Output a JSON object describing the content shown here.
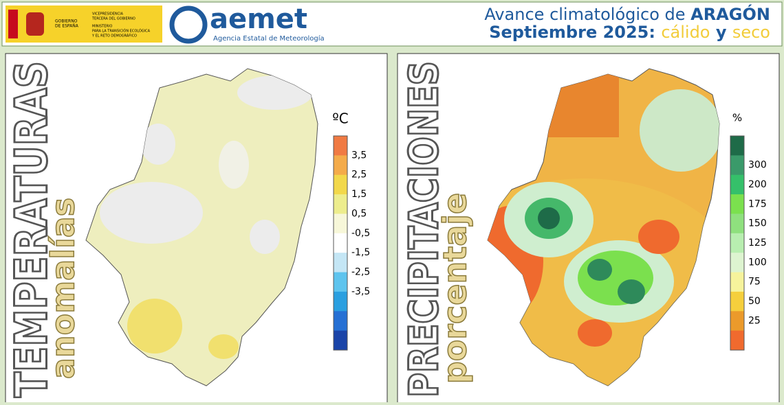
{
  "header": {
    "gov": {
      "line1": "GOBIERNO",
      "line2": "DE ESPAÑA",
      "vice1": "VICEPRESIDENCIA",
      "vice2": "TERCERA DEL GOBIERNO",
      "min1": "MINISTERIO",
      "min2": "PARA LA TRANSICIÓN ECOLÓGICA",
      "min3": "Y EL RETO DEMOGRÁFICO"
    },
    "aemet": {
      "logo": "aemet",
      "subtitle": "Agencia Estatal de Meteorología"
    },
    "title": {
      "line1": [
        "Avance climatológico de ",
        "ARAGÓN"
      ],
      "line2": [
        "Septiembre 2025: ",
        "cálido",
        " y ",
        "seco"
      ]
    }
  },
  "panels": [
    {
      "title": "TEMPERATURAS",
      "subtitle": "anomalías",
      "unit": "ºC",
      "legend": {
        "labels": [
          "3,5",
          "2,5",
          "1,5",
          "0,5",
          "-0,5",
          "-1,5",
          "-2,5",
          "-3,5"
        ],
        "colors": [
          "#f07a43",
          "#f4ab4a",
          "#f2d84b",
          "#eded8d",
          "#f7f7d9",
          "#ffffff",
          "#c4e6f5",
          "#5ec4ee",
          "#2a9fe0",
          "#2670d4",
          "#1a44a8"
        ]
      }
    },
    {
      "title": "PRECIPITACIONES",
      "subtitle": "porcentaje",
      "unit": "%",
      "legend": {
        "labels": [
          "300",
          "200",
          "175",
          "150",
          "125",
          "100",
          "75",
          "50",
          "25"
        ],
        "colors": [
          "#1e6b48",
          "#3a9a6a",
          "#35c06a",
          "#7be04e",
          "#8fe07e",
          "#b8eeb0",
          "#ddf4d0",
          "#f6f39c",
          "#f5cf3d",
          "#eb9a2b",
          "#f06a2e"
        ]
      }
    }
  ]
}
